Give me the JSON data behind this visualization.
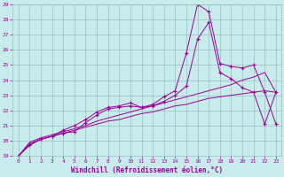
{
  "xlabel": "Windchill (Refroidissement éolien,°C)",
  "bg_color": "#c8ecec",
  "line_color": "#990099",
  "grid_color": "#9bbfbf",
  "xlim": [
    -0.5,
    23.5
  ],
  "ylim": [
    19,
    29
  ],
  "xticks": [
    0,
    1,
    2,
    3,
    4,
    5,
    6,
    7,
    8,
    9,
    10,
    11,
    12,
    13,
    14,
    15,
    16,
    17,
    18,
    19,
    20,
    21,
    22,
    23
  ],
  "yticks": [
    19,
    20,
    21,
    22,
    23,
    24,
    25,
    26,
    27,
    28,
    29
  ],
  "series": [
    {
      "y": [
        19.0,
        19.7,
        20.1,
        20.3,
        20.5,
        20.6,
        21.2,
        21.7,
        22.1,
        22.2,
        22.3,
        22.2,
        22.4,
        22.9,
        23.3,
        25.8,
        29.0,
        28.5,
        25.1,
        24.9,
        24.8,
        25.0,
        23.2,
        21.1
      ],
      "marker": true
    },
    {
      "y": [
        19.0,
        19.8,
        20.1,
        20.3,
        20.7,
        21.0,
        21.4,
        21.9,
        22.2,
        22.3,
        22.5,
        22.2,
        22.3,
        22.6,
        23.0,
        23.6,
        26.7,
        27.8,
        24.5,
        24.1,
        23.5,
        23.2,
        21.1,
        23.2
      ],
      "marker": true
    },
    {
      "y": [
        19.0,
        19.9,
        20.2,
        20.4,
        20.6,
        20.8,
        21.0,
        21.3,
        21.5,
        21.7,
        21.9,
        22.1,
        22.3,
        22.5,
        22.7,
        22.9,
        23.1,
        23.3,
        23.5,
        23.7,
        24.0,
        24.2,
        24.5,
        23.2
      ],
      "marker": false
    },
    {
      "y": [
        19.0,
        19.8,
        20.1,
        20.3,
        20.5,
        20.7,
        20.9,
        21.1,
        21.3,
        21.4,
        21.6,
        21.8,
        21.9,
        22.1,
        22.3,
        22.4,
        22.6,
        22.8,
        22.9,
        23.0,
        23.1,
        23.2,
        23.3,
        23.2
      ],
      "marker": false
    }
  ]
}
